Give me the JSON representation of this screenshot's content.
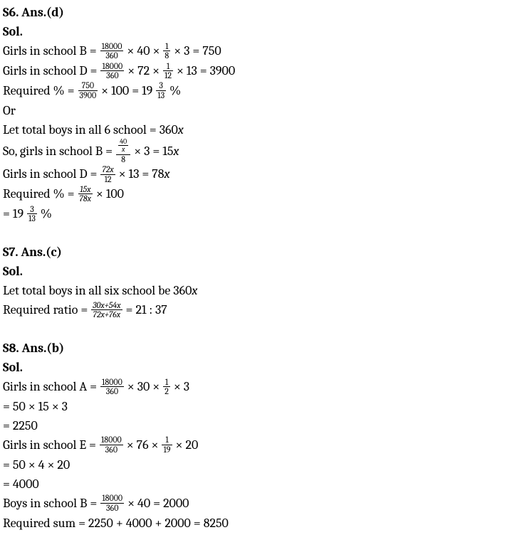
{
  "s6": {
    "heading": "S6. Ans.(d)",
    "sol": "Sol.",
    "l1_pre": "Girls in school B = ",
    "l1_f1_num": "18000",
    "l1_f1_den": "360",
    "l1_mid1": " × 40 × ",
    "l1_f2_num": "1",
    "l1_f2_den": "8",
    "l1_tail": " × 3 = 750",
    "l2_pre": "Girls in school D = ",
    "l2_f1_num": "18000",
    "l2_f1_den": "360",
    "l2_mid1": " × 72 × ",
    "l2_f2_num": "1",
    "l2_f2_den": "12",
    "l2_tail": " × 13 = 3900",
    "l3_pre": "Required % = ",
    "l3_f1_num": "750",
    "l3_f1_den": "3900",
    "l3_mid1": " × 100  = 19 ",
    "l3_f2_num": "3",
    "l3_f2_den": "13",
    "l3_tail": " %",
    "or": "Or",
    "l4_pre": "Let total boys in all 6 school = 360",
    "l4_x": "x",
    "l5_pre": "So, girls in school B = ",
    "l5_num_top_num": "40",
    "l5_num_top_den": "x",
    "l5_num_top_whole_den": "8",
    "l5_mid": " × 3 = 15",
    "l5_x": "x",
    "l6_pre": "Girls in school D = ",
    "l6_f1_num": "72x",
    "l6_f1_den": "12",
    "l6_mid": " × 13  = 78",
    "l6_x": "x",
    "l7_pre": "Required % = ",
    "l7_f1_num": "15x",
    "l7_f1_den": "78x",
    "l7_tail": " × 100",
    "l8_pre": "= 19 ",
    "l8_f_num": "3",
    "l8_f_den": "13",
    "l8_tail": " %"
  },
  "s7": {
    "heading": "S7. Ans.(c)",
    "sol": "Sol.",
    "l1_pre": "Let total boys in all six school be 360",
    "l1_x": "x",
    "l2_pre": "Required ratio = ",
    "l2_f_num": "30x+54x",
    "l2_f_den": "72x+76x",
    "l2_tail": " = 21 : 37"
  },
  "s8": {
    "heading": "S8. Ans.(b)",
    "sol": "Sol.",
    "l1_pre": "Girls in school A = ",
    "l1_f1_num": "18000",
    "l1_f1_den": "360",
    "l1_mid1": " × 30 × ",
    "l1_f2_num": "1",
    "l1_f2_den": "2",
    "l1_tail": " × 3",
    "l2": "= 50 × 15 × 3",
    "l3": "= 2250",
    "l4_pre": " Girls in school E = ",
    "l4_f1_num": "18000",
    "l4_f1_den": "360",
    "l4_mid1": " × 76 × ",
    "l4_f2_num": "1",
    "l4_f2_den": "19",
    "l4_tail": " × 20",
    "l5": "= 50 × 4 × 20",
    "l6": "= 4000",
    "l7_pre": "Boys in school B = ",
    "l7_f1_num": "18000",
    "l7_f1_den": "360",
    "l7_tail": " × 40 = 2000",
    "l8": "Required sum = 2250 + 4000 + 2000 = 8250"
  }
}
